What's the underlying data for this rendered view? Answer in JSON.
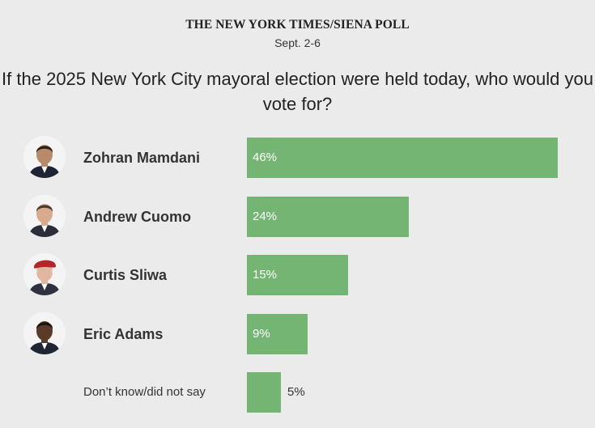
{
  "header": {
    "kicker": "THE NEW YORK TIMES/SIENA POLL",
    "dates": "Sept. 2-6",
    "question": "If the 2025 New York City mayoral election were held today, who would you vote for?"
  },
  "chart_data": {
    "type": "bar",
    "orientation": "horizontal",
    "categories": [
      "Zohran Mamdani",
      "Andrew Cuomo",
      "Curtis Sliwa",
      "Eric Adams",
      "Don’t know/did not say"
    ],
    "values": [
      46,
      24,
      15,
      9,
      5
    ],
    "data_labels": [
      "46%",
      "24%",
      "15%",
      "9%",
      "5%"
    ],
    "unit": "%",
    "bar_color": "#75b573",
    "grid": false
  },
  "rows": [
    {
      "name": "Zohran Mamdani",
      "value_label": "46%",
      "avatar": "candidate-photo",
      "skin": "#b68a6a",
      "hair": "#2b2118",
      "hat": "none",
      "shirt": "#1e2433"
    },
    {
      "name": "Andrew Cuomo",
      "value_label": "24%",
      "avatar": "candidate-photo",
      "skin": "#d9ab8e",
      "hair": "#4a3a30",
      "hat": "none",
      "shirt": "#2a2d3a"
    },
    {
      "name": "Curtis Sliwa",
      "value_label": "15%",
      "avatar": "candidate-photo",
      "skin": "#e2b7a2",
      "hair": "#d9d9d9",
      "hat": "#b3262b",
      "shirt": "#2e3140"
    },
    {
      "name": "Eric Adams",
      "value_label": "9%",
      "avatar": "candidate-photo",
      "skin": "#5a3a28",
      "hair": "#1a1410",
      "hat": "none",
      "shirt": "#1f2533"
    },
    {
      "name": "Don’t know/did not say",
      "value_label": "5%",
      "avatar": "none",
      "skin": "",
      "hair": "",
      "hat": "none",
      "shirt": ""
    }
  ]
}
